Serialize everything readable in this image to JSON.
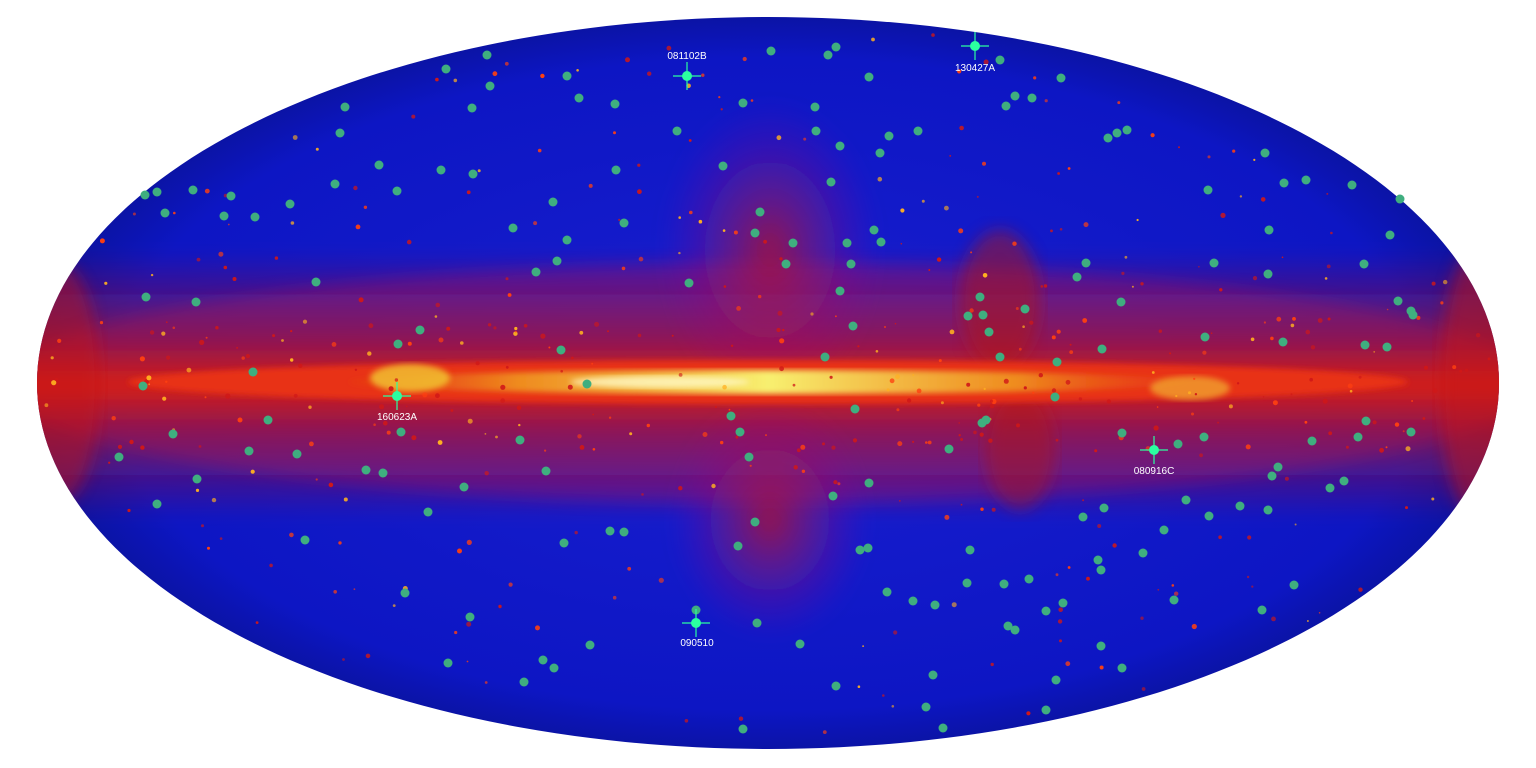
{
  "highlighted_grbs": [
    {
      "name": "081102B"
    },
    {
      "name": "130427A"
    },
    {
      "name": "160623A"
    },
    {
      "name": "080916C"
    },
    {
      "name": "090510"
    }
  ],
  "colors": {
    "background": "#ffffff",
    "sky_low": "#0a14b4",
    "sky_mid": "#d11414",
    "sky_high": "#f5e642",
    "grb_dot": "#3fae7f",
    "highlight_dot": "#2bffa0"
  }
}
